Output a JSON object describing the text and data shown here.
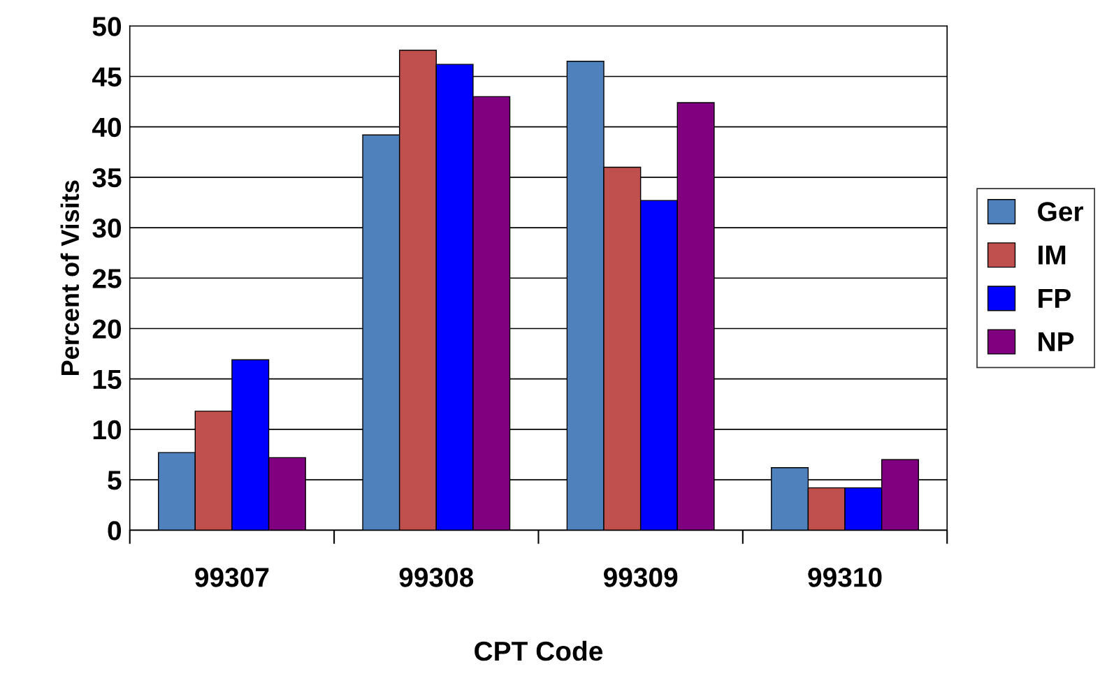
{
  "chart_data": {
    "type": "bar",
    "xlabel": "CPT Code",
    "ylabel": "Percent of Visits",
    "categories": [
      "99307",
      "99308",
      "99309",
      "99310"
    ],
    "series": [
      {
        "name": "Ger",
        "color": "#4f81bd",
        "values": [
          7.7,
          39.2,
          46.5,
          6.2
        ]
      },
      {
        "name": "IM",
        "color": "#c0504d",
        "values": [
          11.8,
          47.6,
          36.0,
          4.2
        ]
      },
      {
        "name": "FP",
        "color": "#0000ff",
        "values": [
          16.9,
          46.2,
          32.7,
          4.2
        ]
      },
      {
        "name": "NP",
        "color": "#800080",
        "values": [
          7.2,
          43.0,
          42.4,
          7.0
        ]
      }
    ],
    "ylim": [
      0,
      50
    ],
    "yticks": [
      0,
      5,
      10,
      15,
      20,
      25,
      30,
      35,
      40,
      45,
      50
    ],
    "grid": "y",
    "legend": "right"
  }
}
